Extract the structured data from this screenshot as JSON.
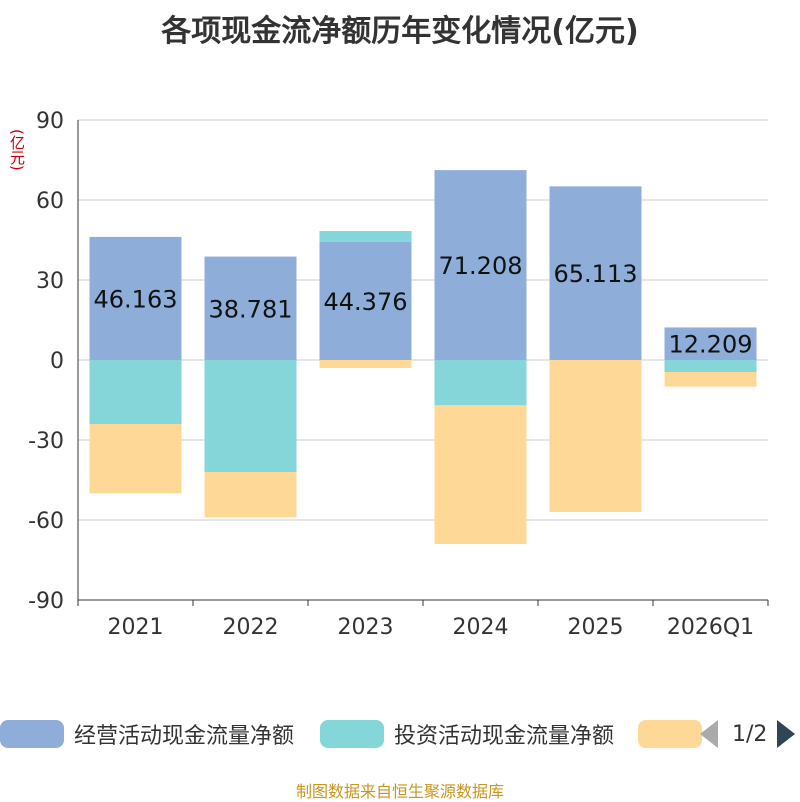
{
  "chart_data": {
    "type": "bar",
    "stacked": true,
    "title": "各项现金流净额历年变化情况(亿元)",
    "ylabel": "(亿元)",
    "ylim": [
      -90,
      90
    ],
    "yticks": [
      90,
      60,
      30,
      0,
      -30,
      -60,
      -90
    ],
    "categories": [
      "2021",
      "2022",
      "2023",
      "2024",
      "2025",
      "2026Q1"
    ],
    "series": [
      {
        "name": "经营活动现金流量净额",
        "color": "#8eaed9",
        "values": [
          46.163,
          38.781,
          44.376,
          71.208,
          65.113,
          12.209
        ],
        "labels": [
          "46.163",
          "38.781",
          "44.376",
          "71.208",
          "65.113",
          "12.209"
        ]
      },
      {
        "name": "投资活动现金流量净额",
        "color": "#85d6d8",
        "values": [
          -24,
          -42,
          4,
          -17,
          0,
          -4.5
        ]
      },
      {
        "name": "",
        "color": "#fed897",
        "values": [
          -26,
          -17,
          -3,
          -52,
          -57,
          -5.5
        ]
      }
    ],
    "legend": {
      "position": "bottom",
      "page": "1/2"
    },
    "source": "制图数据来自恒生聚源数据库"
  }
}
